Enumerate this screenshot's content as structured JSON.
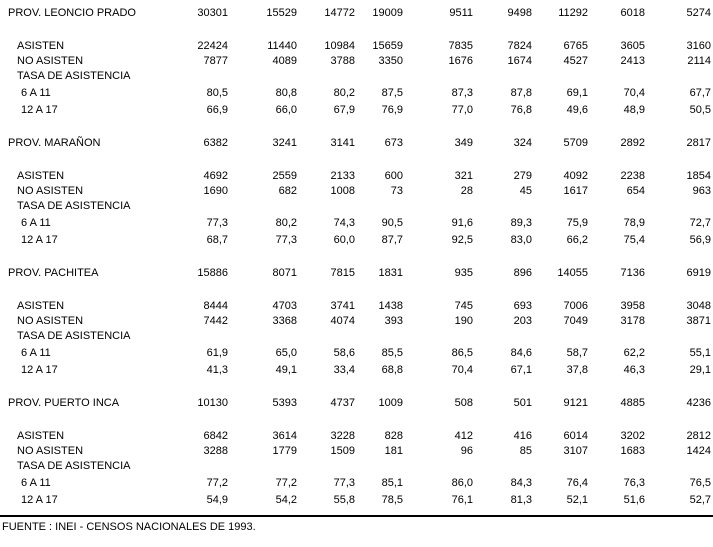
{
  "colors": {
    "background": "#ffffff",
    "text": "#000000",
    "rule": "#000000"
  },
  "table": {
    "columns_count": 9,
    "blocks": [
      {
        "province": "PROV. LEONCIO PRADO",
        "province_values": [
          "30301",
          "15529",
          "14772",
          "19009",
          "9511",
          "9498",
          "11292",
          "6018",
          "5274"
        ],
        "rows": [
          {
            "label": "ASISTEN",
            "values": [
              "22424",
              "11440",
              "10984",
              "15659",
              "7835",
              "7824",
              "6765",
              "3605",
              "3160"
            ]
          },
          {
            "label": "NO ASISTEN",
            "values": [
              "7877",
              "4089",
              "3788",
              "3350",
              "1676",
              "1674",
              "4527",
              "2413",
              "2114"
            ]
          },
          {
            "label": "TASA DE ASISTENCIA",
            "values": []
          },
          {
            "label": "6 A 11",
            "values": [
              "80,5",
              "80,8",
              "80,2",
              "87,5",
              "87,3",
              "87,8",
              "69,1",
              "70,4",
              "67,7"
            ]
          },
          {
            "label": "12 A 17",
            "values": [
              "66,9",
              "66,0",
              "67,9",
              "76,9",
              "77,0",
              "76,8",
              "49,6",
              "48,9",
              "50,5"
            ]
          }
        ]
      },
      {
        "province": "PROV. MARAÑON",
        "province_values": [
          "6382",
          "3241",
          "3141",
          "673",
          "349",
          "324",
          "5709",
          "2892",
          "2817"
        ],
        "rows": [
          {
            "label": "ASISTEN",
            "values": [
              "4692",
              "2559",
              "2133",
              "600",
              "321",
              "279",
              "4092",
              "2238",
              "1854"
            ]
          },
          {
            "label": "NO ASISTEN",
            "values": [
              "1690",
              "682",
              "1008",
              "73",
              "28",
              "45",
              "1617",
              "654",
              "963"
            ]
          },
          {
            "label": "TASA DE ASISTENCIA",
            "values": []
          },
          {
            "label": "6 A 11",
            "values": [
              "77,3",
              "80,2",
              "74,3",
              "90,5",
              "91,6",
              "89,3",
              "75,9",
              "78,9",
              "72,7"
            ]
          },
          {
            "label": "12 A 17",
            "values": [
              "68,7",
              "77,3",
              "60,0",
              "87,7",
              "92,5",
              "83,0",
              "66,2",
              "75,4",
              "56,9"
            ]
          }
        ]
      },
      {
        "province": "PROV. PACHITEA",
        "province_values": [
          "15886",
          "8071",
          "7815",
          "1831",
          "935",
          "896",
          "14055",
          "7136",
          "6919"
        ],
        "rows": [
          {
            "label": "ASISTEN",
            "values": [
              "8444",
              "4703",
              "3741",
              "1438",
              "745",
              "693",
              "7006",
              "3958",
              "3048"
            ]
          },
          {
            "label": "NO ASISTEN",
            "values": [
              "7442",
              "3368",
              "4074",
              "393",
              "190",
              "203",
              "7049",
              "3178",
              "3871"
            ]
          },
          {
            "label": "TASA DE ASISTENCIA",
            "values": []
          },
          {
            "label": "6 A 11",
            "values": [
              "61,9",
              "65,0",
              "58,6",
              "85,5",
              "86,5",
              "84,6",
              "58,7",
              "62,2",
              "55,1"
            ]
          },
          {
            "label": "12 A 17",
            "values": [
              "41,3",
              "49,1",
              "33,4",
              "68,8",
              "70,4",
              "67,1",
              "37,8",
              "46,3",
              "29,1"
            ]
          }
        ]
      },
      {
        "province": "PROV. PUERTO INCA",
        "province_values": [
          "10130",
          "5393",
          "4737",
          "1009",
          "508",
          "501",
          "9121",
          "4885",
          "4236"
        ],
        "rows": [
          {
            "label": "ASISTEN",
            "values": [
              "6842",
              "3614",
              "3228",
              "828",
              "412",
              "416",
              "6014",
              "3202",
              "2812"
            ]
          },
          {
            "label": "NO ASISTEN",
            "values": [
              "3288",
              "1779",
              "1509",
              "181",
              "96",
              "85",
              "3107",
              "1683",
              "1424"
            ]
          },
          {
            "label": "TASA DE ASISTENCIA",
            "values": []
          },
          {
            "label": "6 A 11",
            "values": [
              "77,2",
              "77,2",
              "77,3",
              "85,1",
              "86,0",
              "84,3",
              "76,4",
              "76,3",
              "76,5"
            ]
          },
          {
            "label": "12 A 17",
            "values": [
              "54,9",
              "54,2",
              "55,8",
              "78,5",
              "76,1",
              "81,3",
              "52,1",
              "51,6",
              "52,7"
            ]
          }
        ]
      }
    ],
    "footer": {
      "source": "FUENTE : INEI - CENSOS NACIONALES DE 1993."
    }
  }
}
